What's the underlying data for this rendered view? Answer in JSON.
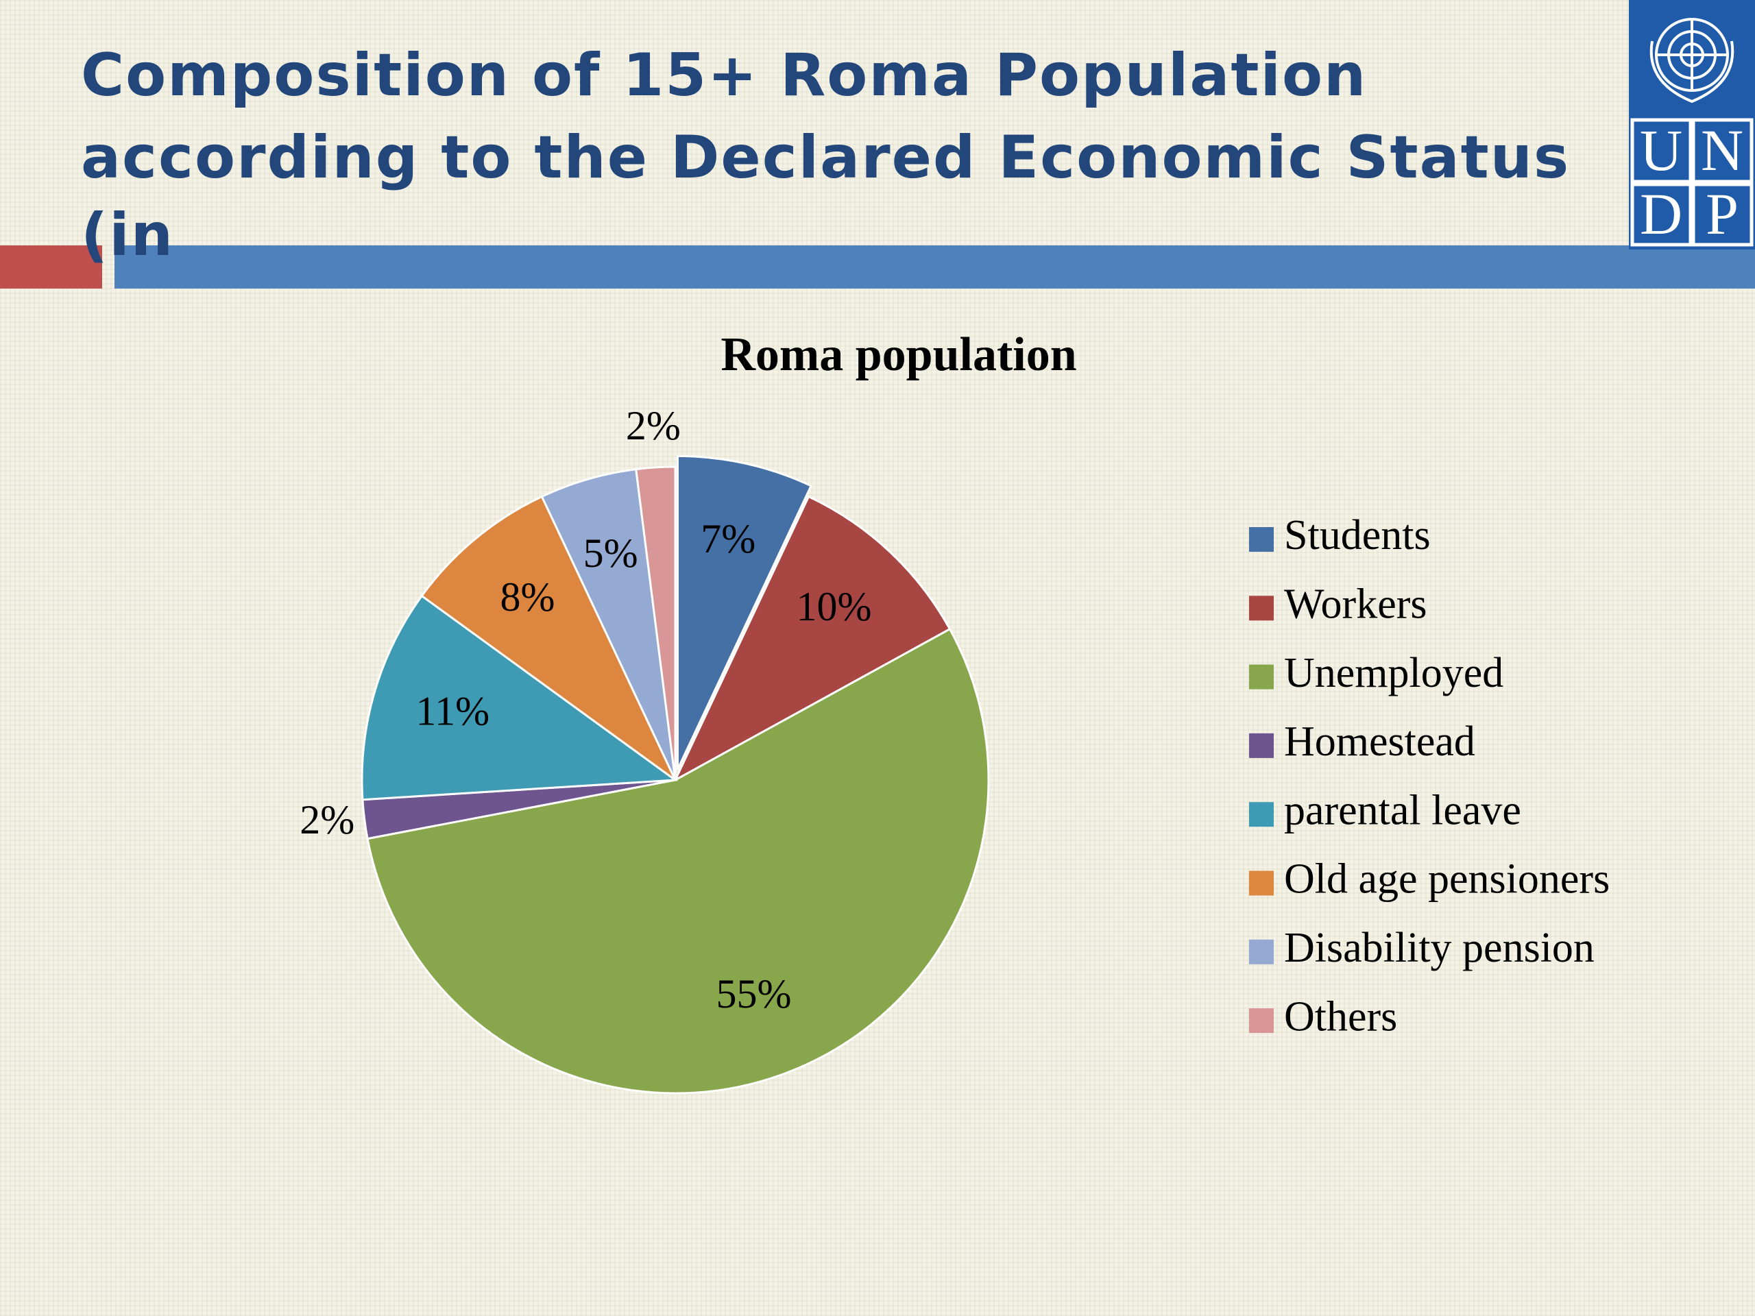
{
  "slide_title_lines": [
    "Composition of 15+ Roma Population",
    "according to the Declared Economic Status",
    "(in"
  ],
  "logo": {
    "letters": [
      "U",
      "N",
      "D",
      "P"
    ]
  },
  "chart_data": {
    "type": "pie",
    "title": "Roma population",
    "categories": [
      "Students",
      "Workers",
      "Unemployed",
      "Homestead",
      "parental leave",
      "Old age pensioners",
      "Disability pension",
      "Others"
    ],
    "values": [
      7,
      10,
      55,
      2,
      11,
      8,
      5,
      2
    ],
    "value_labels": [
      "7%",
      "10%",
      "55%",
      "2%",
      "11%",
      "8%",
      "5%",
      "2%"
    ],
    "colors": [
      "#4470a6",
      "#a84644",
      "#88a64c",
      "#6f558f",
      "#3f9ab4",
      "#dc8640",
      "#94aad3",
      "#d89696"
    ],
    "exploded": [
      0
    ],
    "legend": "right"
  }
}
